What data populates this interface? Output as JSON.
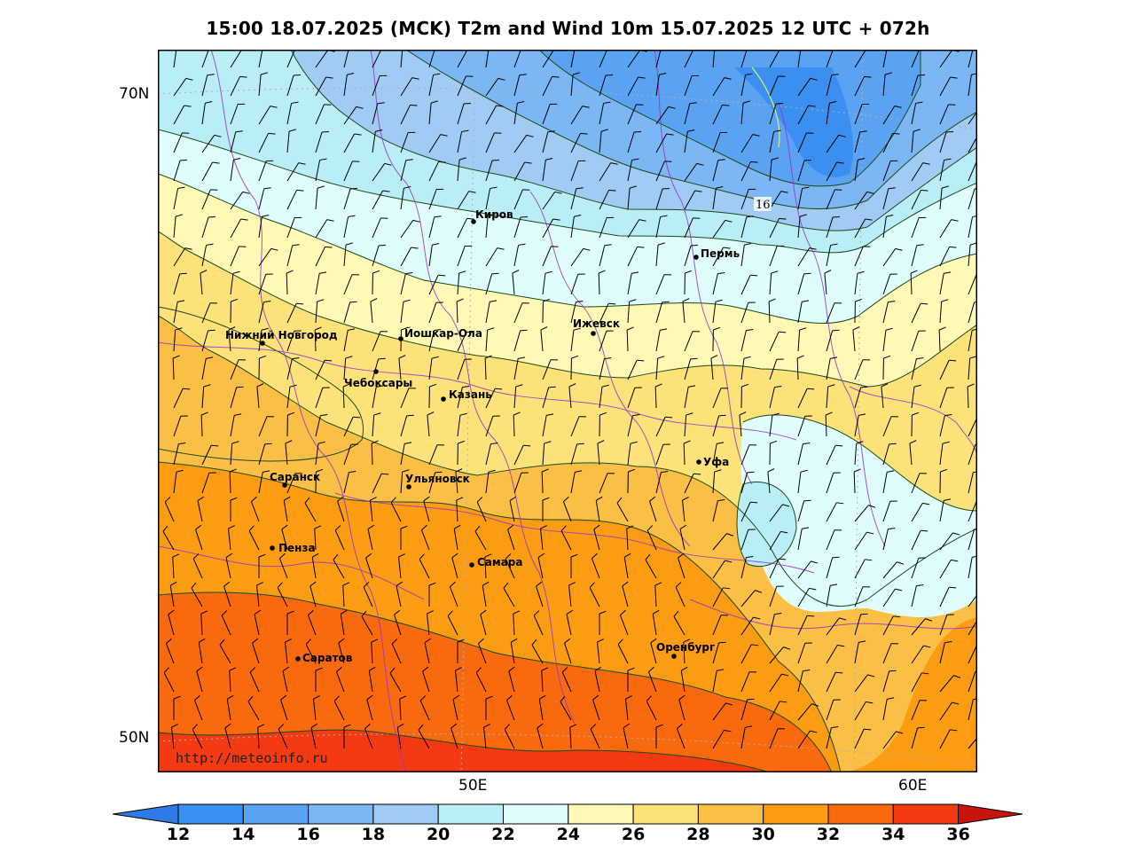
{
  "title": "15:00 18.07.2025 (MCK) T2m and Wind 10m 15.07.2025 12 UTC + 072h",
  "axes": {
    "lat_labels": [
      "70N",
      "50N"
    ],
    "lon_labels": [
      "50E",
      "60E"
    ]
  },
  "watermark": "http://meteoinfo.ru",
  "contour_label": "16",
  "cities": [
    {
      "name": "Киров"
    },
    {
      "name": "Пермь"
    },
    {
      "name": "Нижний Новгород"
    },
    {
      "name": "Йошкар-Ола"
    },
    {
      "name": "Ижевск"
    },
    {
      "name": "Чебоксары"
    },
    {
      "name": "Казань"
    },
    {
      "name": "Уфа"
    },
    {
      "name": "Саранск"
    },
    {
      "name": "Ульяновск"
    },
    {
      "name": "Пенза"
    },
    {
      "name": "Самара"
    },
    {
      "name": "Оренбург"
    },
    {
      "name": "Саратов"
    }
  ],
  "colorbar": {
    "ticks": [
      "12",
      "14",
      "16",
      "18",
      "20",
      "22",
      "24",
      "26",
      "28",
      "30",
      "32",
      "34",
      "36"
    ],
    "colors": [
      "#3b8ff0",
      "#5aa3f2",
      "#7bb6f5",
      "#9fcbf5",
      "#b9eef7",
      "#e0fdfd",
      "#fff9b5",
      "#fde27a",
      "#fcbf45",
      "#fb9c12",
      "#f96a0e",
      "#f43a12",
      "#d81a10"
    ],
    "under_color": "#2f7ae6",
    "over_color": "#c8140c"
  }
}
